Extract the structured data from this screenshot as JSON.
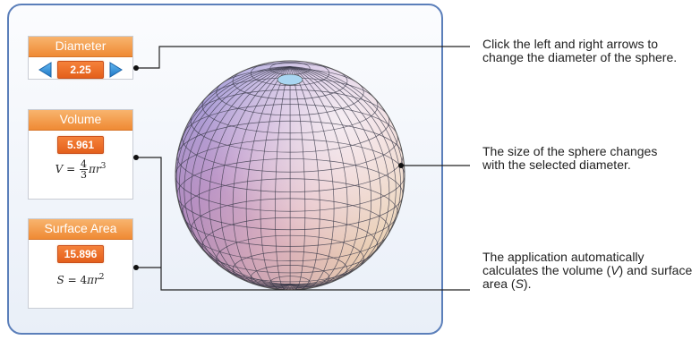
{
  "diameter_panel": {
    "title": "Diameter",
    "value": "2.25"
  },
  "volume_panel": {
    "title": "Volume",
    "value": "5.961",
    "formula": {
      "lhs": "V",
      "equals": "=",
      "numerator": "4",
      "denominator": "3",
      "rest_pi": "π",
      "rest_r": "r",
      "exponent": "3"
    }
  },
  "surface_panel": {
    "title": "Surface Area",
    "value": "15.896",
    "formula": {
      "lhs": "S",
      "equals": "=",
      "coef": "4",
      "pi": "π",
      "r": "r",
      "exponent": "2"
    }
  },
  "callouts": {
    "arrows": "Click the left and right arrows to change the diameter of the sphere.",
    "size": "The size of the sphere changes with the selected diameter.",
    "calc": "The application automatically calculates the volume (V) and surface area (S)."
  },
  "colors": {
    "accent_orange": "#e45f1b",
    "header_orange": "#f39a45",
    "arrow_blue": "#2f8fd8",
    "frame_blue": "#5b7fba"
  },
  "icons": {
    "left": "triangle-left",
    "right": "triangle-right"
  }
}
